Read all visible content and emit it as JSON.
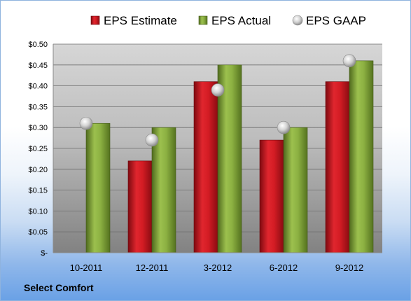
{
  "chart_data": {
    "type": "bar",
    "categories": [
      "10-2011",
      "12-2011",
      "3-2012",
      "6-2012",
      "9-2012"
    ],
    "series": [
      {
        "name": "EPS Estimate",
        "kind": "bar",
        "color": "#c0141c",
        "values": [
          null,
          0.22,
          0.41,
          0.27,
          0.41
        ]
      },
      {
        "name": "EPS Actual",
        "kind": "bar",
        "color": "#7fa43a",
        "values": [
          0.31,
          0.3,
          0.45,
          0.3,
          0.46
        ]
      },
      {
        "name": "EPS GAAP",
        "kind": "marker",
        "color": "#c8c8c8",
        "values": [
          0.31,
          0.27,
          0.39,
          0.3,
          0.46
        ]
      }
    ],
    "ylim": [
      0,
      0.5
    ],
    "yticks": [
      0,
      0.05,
      0.1,
      0.15,
      0.2,
      0.25,
      0.3,
      0.35,
      0.4,
      0.45,
      0.5
    ],
    "ytick_labels": [
      "$-",
      "$0.05",
      "$0.10",
      "$0.15",
      "$0.20",
      "$0.25",
      "$0.30",
      "$0.35",
      "$0.40",
      "$0.45",
      "$0.50"
    ],
    "grid": true,
    "legend_position": "top"
  },
  "footer": {
    "company": "Select Comfort"
  }
}
